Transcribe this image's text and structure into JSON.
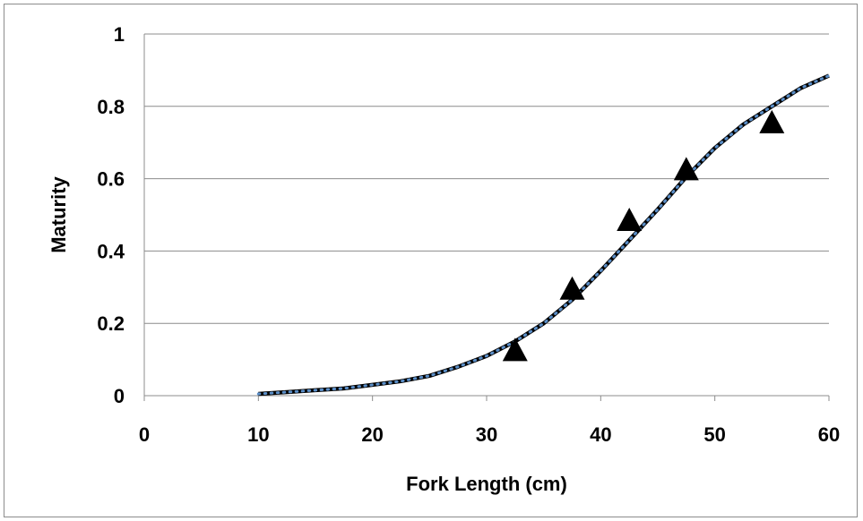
{
  "chart_data": {
    "type": "scatter",
    "xlabel": "Fork Length (cm)",
    "ylabel": "Maturity",
    "xlim": [
      0,
      60
    ],
    "ylim": [
      0,
      1
    ],
    "x_ticks": [
      "0",
      "10",
      "20",
      "30",
      "40",
      "50",
      "60"
    ],
    "y_ticks": [
      "0",
      "0.2",
      "0.4",
      "0.6",
      "0.8",
      "1"
    ],
    "grid": "horizontal",
    "legend": "none",
    "series": [
      {
        "type": "scatter",
        "marker": "triangle",
        "color": "#000000",
        "points": [
          {
            "x": 32.5,
            "y": 0.12
          },
          {
            "x": 37.5,
            "y": 0.29
          },
          {
            "x": 42.5,
            "y": 0.48
          },
          {
            "x": 47.5,
            "y": 0.62
          },
          {
            "x": 55.0,
            "y": 0.75
          }
        ]
      },
      {
        "type": "line",
        "style": "solid",
        "color": "#000000",
        "x": [
          10,
          12.5,
          15,
          17.5,
          20,
          22.5,
          25,
          27.5,
          30,
          32.5,
          35,
          37.5,
          40,
          42.5,
          45,
          47.5,
          50,
          52.5,
          55,
          57.5,
          60
        ],
        "y": [
          0.005,
          0.01,
          0.015,
          0.02,
          0.03,
          0.04,
          0.055,
          0.08,
          0.11,
          0.15,
          0.2,
          0.265,
          0.345,
          0.43,
          0.515,
          0.605,
          0.685,
          0.75,
          0.8,
          0.85,
          0.885
        ]
      },
      {
        "type": "line",
        "style": "dotted",
        "color": "#5b8fc9",
        "x": [
          10,
          12.5,
          15,
          17.5,
          20,
          22.5,
          25,
          27.5,
          30,
          32.5,
          35,
          37.5,
          40,
          42.5,
          45,
          47.5,
          50,
          52.5,
          55,
          57.5,
          60
        ],
        "y": [
          0.005,
          0.01,
          0.015,
          0.02,
          0.03,
          0.04,
          0.055,
          0.08,
          0.11,
          0.15,
          0.2,
          0.265,
          0.345,
          0.43,
          0.515,
          0.605,
          0.685,
          0.75,
          0.8,
          0.85,
          0.885
        ]
      }
    ]
  }
}
